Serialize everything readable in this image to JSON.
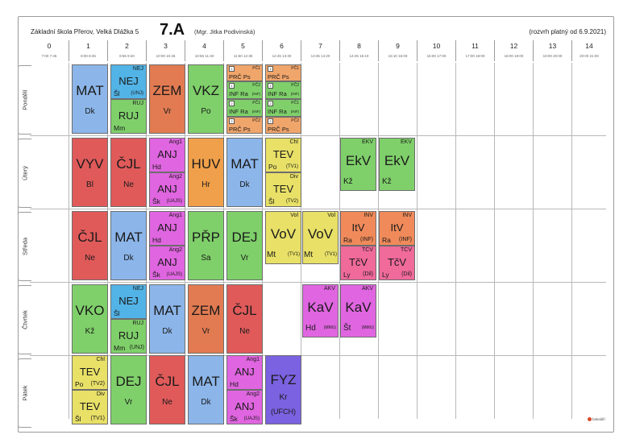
{
  "header": {
    "school": "Základní škola Přerov, Velká Dlážka 5",
    "class_name": "7.A",
    "teacher": "(Mgr. Jitka Podivinská)",
    "valid_from": "(rozvrh platný od 6.9.2021)"
  },
  "periods": [
    {
      "num": "0",
      "time": "7:00 7:45"
    },
    {
      "num": "1",
      "time": "8:00 8:45"
    },
    {
      "num": "2",
      "time": "8:55 9:40"
    },
    {
      "num": "3",
      "time": "10:00 10:45"
    },
    {
      "num": "4",
      "time": "10:55 11:40"
    },
    {
      "num": "5",
      "time": "11:50 12:35"
    },
    {
      "num": "6",
      "time": "12:45 13:30"
    },
    {
      "num": "7",
      "time": "13:35 14:20"
    },
    {
      "num": "8",
      "time": "14:25 15:10"
    },
    {
      "num": "9",
      "time": "15:10 16:00"
    },
    {
      "num": "10",
      "time": "16:00 17:00"
    },
    {
      "num": "11",
      "time": "17:00 18:00"
    },
    {
      "num": "12",
      "time": "18:00 19:00"
    },
    {
      "num": "13",
      "time": "19:00 20:00"
    },
    {
      "num": "14",
      "time": "20:00 21:00"
    }
  ],
  "days": [
    {
      "name": "Pondělí"
    },
    {
      "name": "Úterý"
    },
    {
      "name": "Středa"
    },
    {
      "name": "Čtvrtek"
    },
    {
      "name": "Pátek"
    }
  ],
  "colors": {
    "MAT": "#8cb6ea",
    "NEJ": "#52b3e6",
    "RUJ": "#7fd06a",
    "ZEM": "#e27b52",
    "VKZ": "#7fd06a",
    "PRC": "#f0a56b",
    "INF": "#7fd06a",
    "VYV": "#e05a5a",
    "CJL": "#e05a5a",
    "ANJ": "#e065e0",
    "HUV": "#f0a04a",
    "TEV": "#e8e067",
    "EKV": "#7fd06a",
    "PRP": "#7fd06a",
    "DEJ": "#7fd06a",
    "VOV": "#e8e067",
    "ITV": "#f08a5a",
    "TCV": "#f06a9a",
    "VKO": "#7fd06a",
    "KAV": "#e065e0",
    "FYZ": "#7a62e0"
  },
  "lessons": {
    "mon": {
      "p1": {
        "subj": "MAT",
        "tch": "Dk"
      },
      "p2": {
        "g1": {
          "top": "NEJ",
          "subj": "NEJ",
          "tch": "Šl",
          "room": "(UNJ)"
        },
        "g2": {
          "top": "RUJ",
          "subj": "RUJ",
          "tch": "Mm",
          "room": ""
        }
      },
      "p3": {
        "subj": "ZEM",
        "tch": "Vr"
      },
      "p4": {
        "subj": "VKZ",
        "tch": "Po"
      },
      "p5": [
        {
          "a": "1",
          "b": "PČ1",
          "subj": "PRČ Ps",
          "room": ""
        },
        {
          "a": "1",
          "b": "PČ2",
          "subj": "INF Ra",
          "room": "(INF)"
        },
        {
          "a": "2",
          "b": "PČ1",
          "subj": "INF Ra",
          "room": "(INF)"
        },
        {
          "a": "2",
          "b": "PČ2",
          "subj": "PRČ Ps",
          "room": ""
        }
      ],
      "p6": [
        {
          "a": "1",
          "b": "PČ1",
          "subj": "PRČ Ps",
          "room": ""
        },
        {
          "a": "1",
          "b": "PČ2",
          "subj": "INF Ra",
          "room": "(INF)"
        },
        {
          "a": "2",
          "b": "PČ1",
          "subj": "INF Ra",
          "room": "(INF)"
        },
        {
          "a": "2",
          "b": "PČ2",
          "subj": "PRČ Ps",
          "room": ""
        }
      ]
    },
    "tue": {
      "p1": {
        "subj": "VYV",
        "tch": "Bl"
      },
      "p2": {
        "subj": "ČJL",
        "tch": "Ne"
      },
      "p3": {
        "g1": {
          "top": "Ang1",
          "subj": "ANJ",
          "tch": "Hd",
          "room": ""
        },
        "g2": {
          "top": "Ang2",
          "subj": "ANJ",
          "tch": "Šk",
          "room": "(UAJS)"
        }
      },
      "p4": {
        "subj": "HUV",
        "tch": "Hr"
      },
      "p5": {
        "subj": "MAT",
        "tch": "Dk"
      },
      "p6": {
        "g1": {
          "top": "Chl",
          "subj": "TEV",
          "tch": "Po",
          "room": "(TV1)"
        },
        "g2": {
          "top": "Div",
          "subj": "TEV",
          "tch": "Šl",
          "room": "(TV2)"
        }
      },
      "p8": {
        "top": "EKV",
        "subj": "EkV",
        "tch": "Kž"
      },
      "p9": {
        "top": "EKV",
        "subj": "EkV",
        "tch": "Kž"
      }
    },
    "wed": {
      "p1": {
        "subj": "ČJL",
        "tch": "Ne"
      },
      "p2": {
        "subj": "MAT",
        "tch": "Dk"
      },
      "p3": {
        "g1": {
          "top": "Ang1",
          "subj": "ANJ",
          "tch": "Hd",
          "room": ""
        },
        "g2": {
          "top": "Ang2",
          "subj": "ANJ",
          "tch": "Šk",
          "room": "(UAJS)"
        }
      },
      "p4": {
        "subj": "PŘP",
        "tch": "Sa"
      },
      "p5": {
        "subj": "DEJ",
        "tch": "Vr"
      },
      "p6": {
        "top": "Vol",
        "subj": "VoV",
        "tch": "Mt",
        "room": "(TV1)"
      },
      "p7": {
        "top": "Vol",
        "subj": "VoV",
        "tch": "Mt",
        "room": "(TV1)"
      },
      "p8": {
        "g1": {
          "top": "INV",
          "subj": "ItV",
          "tch": "Ra",
          "room": "(INF)"
        },
        "g2": {
          "top": "TČV",
          "subj": "TčV",
          "tch": "Ly",
          "room": "(Dil)"
        }
      },
      "p9": {
        "g1": {
          "top": "INV",
          "subj": "ItV",
          "tch": "Ra",
          "room": "(INF)"
        },
        "g2": {
          "top": "TČV",
          "subj": "TčV",
          "tch": "Ly",
          "room": "(Dil)"
        }
      }
    },
    "thu": {
      "p1": {
        "subj": "VKO",
        "tch": "Kž"
      },
      "p2": {
        "g1": {
          "top": "NEJ",
          "subj": "NEJ",
          "tch": "Šl",
          "room": ""
        },
        "g2": {
          "top": "RUJ",
          "subj": "RUJ",
          "tch": "Mm",
          "room": "(UNJ)"
        }
      },
      "p3": {
        "subj": "MAT",
        "tch": "Dk"
      },
      "p4": {
        "subj": "ZEM",
        "tch": "Vr"
      },
      "p5": {
        "subj": "ČJL",
        "tch": "Ne"
      },
      "p7": {
        "top": "AKV",
        "subj": "KaV",
        "tch": "Hd",
        "room": "(MMU)"
      },
      "p8": {
        "top": "AKV",
        "subj": "KaV",
        "tch": "Št",
        "room": "(MMU)"
      }
    },
    "fri": {
      "p1": {
        "g1": {
          "top": "Chl",
          "subj": "TEV",
          "tch": "Po",
          "room": "(TV2)"
        },
        "g2": {
          "top": "Div",
          "subj": "TEV",
          "tch": "Šl",
          "room": "(TV1)"
        }
      },
      "p2": {
        "subj": "DEJ",
        "tch": "Vr"
      },
      "p3": {
        "subj": "ČJL",
        "tch": "Ne"
      },
      "p4": {
        "subj": "MAT",
        "tch": "Dk"
      },
      "p5": {
        "g1": {
          "top": "Ang1",
          "subj": "ANJ",
          "tch": "Hd",
          "room": ""
        },
        "g2": {
          "top": "Ang2",
          "subj": "ANJ",
          "tch": "Šk",
          "room": "(UAJS)"
        }
      },
      "p6": {
        "subj": "FYZ",
        "tch": "Kr",
        "room": "(UFCH)"
      }
    }
  },
  "logo_text": "bakaláři"
}
